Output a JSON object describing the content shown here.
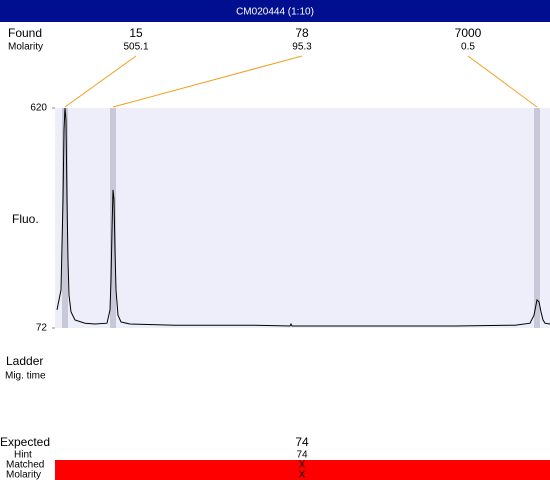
{
  "title": "CM020444 (1:10)",
  "labels": {
    "found": "Found",
    "molarity": "Molarity",
    "fluo": "Fluo.",
    "ladder": "Ladder",
    "mig_time": "Mig. time",
    "expected": "Expected",
    "hint": "Hint",
    "matched": "Matched",
    "molarity_bottom": "Molarity"
  },
  "found": [
    {
      "size": 15,
      "molarity": 505.1
    },
    {
      "size": 78,
      "molarity": 95.3
    },
    {
      "size": 7000,
      "molarity": 0.5
    }
  ],
  "expected": {
    "size": 74,
    "hint": 74,
    "matched": "X",
    "molarity": "X"
  },
  "chart_data": {
    "type": "line",
    "x": [
      2,
      6,
      8,
      9,
      10,
      11,
      12,
      13,
      14,
      16,
      20,
      30,
      40,
      52,
      55,
      56,
      57,
      58,
      59,
      60,
      61,
      63,
      66,
      75,
      120,
      200,
      235,
      236,
      237,
      300,
      400,
      460,
      475,
      479,
      482,
      484,
      486,
      488,
      490,
      495
    ],
    "values": [
      117,
      167,
      391,
      565,
      620,
      590,
      391,
      241,
      154,
      112,
      92,
      84,
      82,
      84,
      117,
      192,
      316,
      416,
      391,
      266,
      167,
      104,
      87,
      82,
      79,
      79,
      77,
      82,
      77,
      77,
      77,
      79,
      84,
      104,
      142,
      137,
      112,
      92,
      84,
      82
    ],
    "xlim": [
      0,
      495
    ],
    "ylim": [
      72,
      620
    ],
    "yticks": [
      72,
      620
    ],
    "color": "#000000",
    "background": "#eeeefa"
  }
}
